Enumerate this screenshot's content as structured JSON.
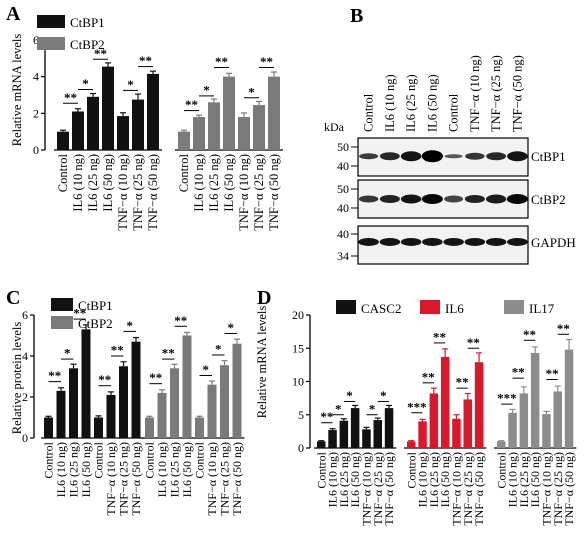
{
  "colors": {
    "ctbp1": "#111111",
    "ctbp2": "#7a7a7a",
    "casc2": "#111111",
    "il6": "#d9182b",
    "il17": "#8c8c8c"
  },
  "categories": [
    "Control",
    "IL6 (10 ng)",
    "IL6 (25 ng)",
    "IL6 (50 ng)",
    "TNF−α (10 ng)",
    "TNF−α (25 ng)",
    "TNF−α (50 ng)"
  ],
  "panels": {
    "A": {
      "letter": "A",
      "ylabel": "Relative mRNA levels",
      "ylim": [
        0,
        6
      ],
      "yticks": [
        "0",
        "2",
        "4",
        "6"
      ],
      "legend": [
        {
          "name": "CtBP1",
          "color_key": "ctbp1"
        },
        {
          "name": "CtBP2",
          "color_key": "ctbp2"
        }
      ]
    },
    "B": {
      "letter": "B",
      "kda_label": "kDa",
      "lane_labels": [
        "Control",
        "IL6 (10 ng)",
        "IL6 (25 ng)",
        "IL6 (50 ng)",
        "Control",
        "TNF−α (10 ng)",
        "TNF−α (25 ng)",
        "TNF−α (50 ng)"
      ],
      "blots": [
        {
          "name": "CtBP1",
          "markers": [
            "50",
            "40"
          ]
        },
        {
          "name": "CtBP2",
          "markers": [
            "50",
            "40"
          ]
        },
        {
          "name": "GAPDH",
          "markers": [
            "40",
            "34"
          ]
        }
      ]
    },
    "C": {
      "letter": "C",
      "ylabel": "Relative protein levels",
      "ylim": [
        0,
        6
      ],
      "yticks": [
        "0",
        "2",
        "4",
        "6"
      ],
      "legend": [
        {
          "name": "CtBP1",
          "color_key": "ctbp1"
        },
        {
          "name": "CtBP2",
          "color_key": "ctbp2"
        }
      ]
    },
    "D": {
      "letter": "D",
      "ylabel": "Relative mRNA levels",
      "ylim": [
        0,
        20
      ],
      "yticks": [
        "0",
        "5",
        "10",
        "15",
        "20"
      ],
      "legend": [
        {
          "name": "CASC2",
          "color_key": "casc2"
        },
        {
          "name": "IL6",
          "color_key": "il6"
        },
        {
          "name": "IL17",
          "color_key": "il17"
        }
      ]
    }
  },
  "chart_data": [
    {
      "panel": "A",
      "type": "bar",
      "ylabel": "Relative mRNA levels",
      "ylim": [
        0,
        6
      ],
      "categories": [
        "Control",
        "IL6 (10 ng)",
        "IL6 (25 ng)",
        "IL6 (50 ng)",
        "TNF−α (10 ng)",
        "TNF−α (25 ng)",
        "TNF−α (50 ng)"
      ],
      "series": [
        {
          "name": "CtBP1",
          "color_key": "ctbp1",
          "values": [
            1.0,
            2.1,
            2.9,
            4.55,
            1.85,
            2.75,
            4.15
          ],
          "errors": [
            0.08,
            0.15,
            0.18,
            0.2,
            0.18,
            0.3,
            0.15
          ]
        },
        {
          "name": "CtBP2",
          "color_key": "ctbp2",
          "values": [
            1.0,
            1.8,
            2.6,
            4.0,
            1.8,
            2.45,
            4.0
          ],
          "errors": [
            0.08,
            0.1,
            0.18,
            0.18,
            0.22,
            0.2,
            0.25
          ]
        }
      ],
      "sig": [
        {
          "series": 0,
          "from": 0,
          "to": 1,
          "label": "**",
          "y": 2.55
        },
        {
          "series": 0,
          "from": 1,
          "to": 2,
          "label": "*",
          "y": 3.3
        },
        {
          "series": 0,
          "from": 2,
          "to": 3,
          "label": "**",
          "y": 4.95
        },
        {
          "series": 0,
          "from": 4,
          "to": 5,
          "label": "*",
          "y": 3.25
        },
        {
          "series": 0,
          "from": 5,
          "to": 6,
          "label": "**",
          "y": 4.55
        },
        {
          "series": 1,
          "from": 0,
          "to": 1,
          "label": "**",
          "y": 2.15
        },
        {
          "series": 1,
          "from": 1,
          "to": 2,
          "label": "*",
          "y": 2.95
        },
        {
          "series": 1,
          "from": 2,
          "to": 3,
          "label": "**",
          "y": 4.5
        },
        {
          "series": 1,
          "from": 4,
          "to": 5,
          "label": "*",
          "y": 2.85
        },
        {
          "series": 1,
          "from": 5,
          "to": 6,
          "label": "**",
          "y": 4.5
        }
      ]
    },
    {
      "panel": "C",
      "type": "bar",
      "ylabel": "Relative protein levels",
      "ylim": [
        0,
        6
      ],
      "categories": [
        "Control",
        "IL6 (10 ng)",
        "IL6 (25 ng)",
        "IL6 (50 ng)",
        "Control",
        "TNF−α (10 ng)",
        "TNF−α (25 ng)",
        "TNF−α (50 ng)"
      ],
      "series": [
        {
          "name": "CtBP1",
          "color_key": "ctbp1",
          "values": [
            1.0,
            2.3,
            3.4,
            5.3,
            1.0,
            2.1,
            3.5,
            4.7
          ],
          "errors": [
            0.06,
            0.15,
            0.2,
            0.22,
            0.08,
            0.15,
            0.22,
            0.2
          ]
        },
        {
          "name": "CtBP2",
          "color_key": "ctbp2",
          "values": [
            1.0,
            2.2,
            3.4,
            5.0,
            1.0,
            2.6,
            3.55,
            4.6
          ],
          "errors": [
            0.06,
            0.15,
            0.2,
            0.15,
            0.06,
            0.18,
            0.22,
            0.22
          ]
        }
      ],
      "sig": [
        {
          "series": 0,
          "from": 0,
          "to": 1,
          "label": "**",
          "y": 2.75
        },
        {
          "series": 0,
          "from": 1,
          "to": 2,
          "label": "*",
          "y": 3.85
        },
        {
          "series": 0,
          "from": 2,
          "to": 3,
          "label": "**",
          "y": 5.8
        },
        {
          "series": 0,
          "from": 4,
          "to": 5,
          "label": "**",
          "y": 2.55
        },
        {
          "series": 0,
          "from": 5,
          "to": 6,
          "label": "**",
          "y": 4.0
        },
        {
          "series": 0,
          "from": 6,
          "to": 7,
          "label": "*",
          "y": 5.2
        },
        {
          "series": 1,
          "from": 0,
          "to": 1,
          "label": "**",
          "y": 2.65
        },
        {
          "series": 1,
          "from": 1,
          "to": 2,
          "label": "**",
          "y": 3.85
        },
        {
          "series": 1,
          "from": 2,
          "to": 3,
          "label": "**",
          "y": 5.45
        },
        {
          "series": 1,
          "from": 4,
          "to": 5,
          "label": "*",
          "y": 3.05
        },
        {
          "series": 1,
          "from": 5,
          "to": 6,
          "label": "*",
          "y": 4.05
        },
        {
          "series": 1,
          "from": 6,
          "to": 7,
          "label": "*",
          "y": 5.1
        }
      ]
    },
    {
      "panel": "D",
      "type": "bar",
      "ylabel": "Relative mRNA levels",
      "ylim": [
        0,
        20
      ],
      "categories": [
        "Control",
        "IL6 (10 ng)",
        "IL6 (25 ng)",
        "IL6 (50 ng)",
        "TNF−α (10 ng)",
        "TNF−α (25 ng)",
        "TNF−α (50 ng)"
      ],
      "series": [
        {
          "name": "CASC2",
          "color_key": "casc2",
          "values": [
            1.0,
            2.7,
            4.1,
            6.0,
            2.8,
            4.2,
            6.0
          ],
          "errors": [
            0.1,
            0.2,
            0.3,
            0.4,
            0.3,
            0.3,
            0.4
          ]
        },
        {
          "name": "IL6",
          "color_key": "il6",
          "values": [
            1.0,
            4.0,
            8.2,
            13.7,
            4.4,
            7.3,
            12.9
          ],
          "errors": [
            0.1,
            0.3,
            0.8,
            1.2,
            0.6,
            0.9,
            1.4
          ]
        },
        {
          "name": "IL17",
          "color_key": "il17",
          "values": [
            1.0,
            5.3,
            8.2,
            14.3,
            5.1,
            8.5,
            14.8
          ],
          "errors": [
            0.1,
            0.5,
            1.0,
            0.9,
            0.4,
            0.8,
            1.5
          ]
        }
      ],
      "sig": [
        {
          "series": 0,
          "from": 0,
          "to": 1,
          "label": "**",
          "y": 3.8
        },
        {
          "series": 0,
          "from": 1,
          "to": 2,
          "label": "*",
          "y": 5.0
        },
        {
          "series": 0,
          "from": 2,
          "to": 3,
          "label": "*",
          "y": 7.0
        },
        {
          "series": 0,
          "from": 4,
          "to": 5,
          "label": "*",
          "y": 5.0
        },
        {
          "series": 0,
          "from": 5,
          "to": 6,
          "label": "*",
          "y": 7.0
        },
        {
          "series": 1,
          "from": 0,
          "to": 1,
          "label": "***",
          "y": 5.3
        },
        {
          "series": 1,
          "from": 1,
          "to": 2,
          "label": "**",
          "y": 9.8
        },
        {
          "series": 1,
          "from": 2,
          "to": 3,
          "label": "**",
          "y": 15.8
        },
        {
          "series": 1,
          "from": 4,
          "to": 5,
          "label": "**",
          "y": 9.0
        },
        {
          "series": 1,
          "from": 5,
          "to": 6,
          "label": "**",
          "y": 15.0
        },
        {
          "series": 2,
          "from": 0,
          "to": 1,
          "label": "***",
          "y": 6.6
        },
        {
          "series": 2,
          "from": 1,
          "to": 2,
          "label": "**",
          "y": 10.5
        },
        {
          "series": 2,
          "from": 2,
          "to": 3,
          "label": "**",
          "y": 16.2
        },
        {
          "series": 2,
          "from": 4,
          "to": 5,
          "label": "**",
          "y": 10.3
        },
        {
          "series": 2,
          "from": 5,
          "to": 6,
          "label": "**",
          "y": 17.1
        }
      ]
    }
  ]
}
